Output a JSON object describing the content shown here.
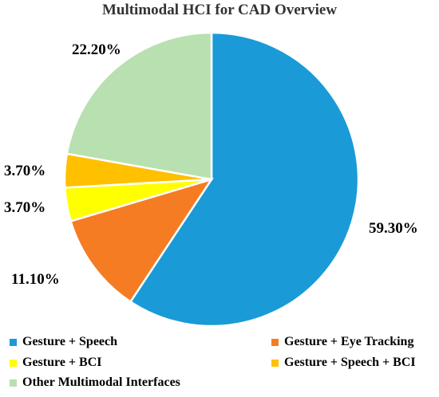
{
  "chart_data": {
    "type": "pie",
    "title": "Multimodal HCI for CAD Overview",
    "slices": [
      {
        "label": "Gesture + Speech",
        "value": 59.3,
        "display": "59.30%",
        "color": "#1a9ad6"
      },
      {
        "label": "Gesture + Eye Tracking",
        "value": 11.1,
        "display": "11.10%",
        "color": "#f57c22"
      },
      {
        "label": "Gesture + BCI",
        "value": 3.7,
        "display": "3.70%",
        "color": "#ffff00"
      },
      {
        "label": "Gesture + Speech + BCI",
        "value": 3.7,
        "display": "3.70%",
        "color": "#ffc000"
      },
      {
        "label": "Other Multimodal Interfaces",
        "value": 22.2,
        "display": "22.20%",
        "color": "#b8e0b0"
      }
    ],
    "start_angle_deg": 0,
    "direction": "clockwise",
    "legend_position": "bottom"
  }
}
